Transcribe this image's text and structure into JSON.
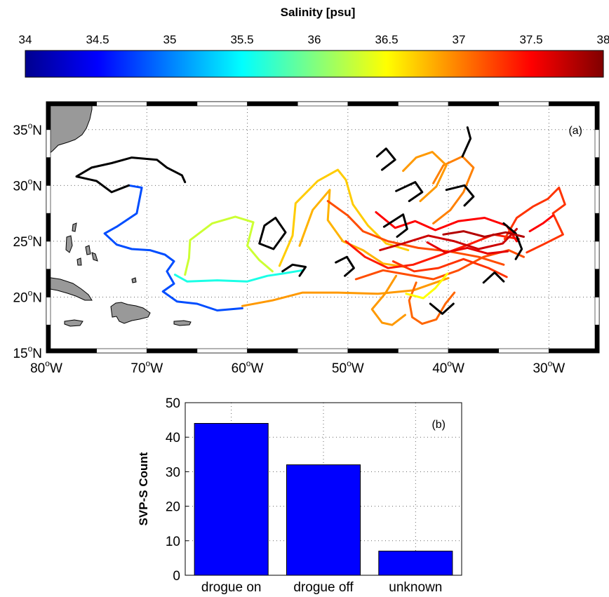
{
  "colorbar": {
    "title": "Salinity [psu]",
    "min": 34,
    "max": 38,
    "ticks": [
      "34",
      "34.5",
      "35",
      "35.5",
      "36",
      "36.5",
      "37",
      "37.5",
      "38"
    ],
    "colors": [
      "#00008f",
      "#0000ff",
      "#0080ff",
      "#00ffff",
      "#80ff80",
      "#ffff00",
      "#ff8000",
      "#ff0000",
      "#800000"
    ]
  },
  "chart_data": [
    {
      "type": "line",
      "panel_label": "(a)",
      "title": "",
      "x_ticks": [
        {
          "value": -80,
          "deg": "80",
          "hemi": "W"
        },
        {
          "value": -70,
          "deg": "70",
          "hemi": "W"
        },
        {
          "value": -60,
          "deg": "60",
          "hemi": "W"
        },
        {
          "value": -50,
          "deg": "50",
          "hemi": "W"
        },
        {
          "value": -40,
          "deg": "40",
          "hemi": "W"
        },
        {
          "value": -30,
          "deg": "30",
          "hemi": "W"
        }
      ],
      "y_ticks": [
        {
          "value": 15,
          "deg": "15",
          "hemi": "N"
        },
        {
          "value": 20,
          "deg": "20",
          "hemi": "N"
        },
        {
          "value": 25,
          "deg": "25",
          "hemi": "N"
        },
        {
          "value": 30,
          "deg": "30",
          "hemi": "N"
        },
        {
          "value": 35,
          "deg": "35",
          "hemi": "N"
        }
      ],
      "xlim": [
        -80,
        -25
      ],
      "ylim": [
        15,
        37.5
      ],
      "grid": true,
      "colored_by": "Salinity [psu]",
      "land_color": "#999999",
      "series": [
        {
          "salinity": 34.8,
          "points": [
            [
              -60.5,
              19.0
            ],
            [
              -63,
              18.8
            ],
            [
              -65,
              19.4
            ],
            [
              -67,
              19.6
            ],
            [
              -68.4,
              20.5
            ],
            [
              -67.3,
              21.2
            ],
            [
              -68,
              22.3
            ],
            [
              -67.3,
              23.2
            ],
            [
              -68.2,
              23.8
            ],
            [
              -69.7,
              24.2
            ],
            [
              -71.5,
              24.3
            ],
            [
              -73,
              24.7
            ],
            [
              -74.2,
              25.7
            ],
            [
              -73,
              26.3
            ],
            [
              -71,
              27.5
            ],
            [
              -70.5,
              29.8
            ],
            [
              -71.8,
              30.0
            ]
          ]
        },
        {
          "salinity": null,
          "points": [
            [
              -71.8,
              30.0
            ],
            [
              -73.5,
              29.4
            ],
            [
              -75,
              30.4
            ],
            [
              -77,
              30.8
            ],
            [
              -75.5,
              31.6
            ],
            [
              -73.5,
              32.0
            ],
            [
              -71.5,
              32.5
            ],
            [
              -69,
              32.3
            ],
            [
              -68,
              31.6
            ],
            [
              -66.5,
              30.9
            ],
            [
              -66.2,
              30.3
            ]
          ]
        },
        {
          "salinity": 35.6,
          "points": [
            [
              -67.2,
              22.0
            ],
            [
              -66,
              21.4
            ],
            [
              -63,
              21.5
            ],
            [
              -60,
              21.4
            ],
            [
              -58,
              21.9
            ],
            [
              -56.5,
              22.1
            ],
            [
              -54.5,
              22.4
            ]
          ]
        },
        {
          "salinity": 36.3,
          "points": [
            [
              -66.2,
              22.0
            ],
            [
              -65.8,
              23.5
            ],
            [
              -65.7,
              25.1
            ],
            [
              -63.5,
              26.6
            ],
            [
              -61.2,
              27.2
            ],
            [
              -59.4,
              26.7
            ],
            [
              -60,
              24.6
            ],
            [
              -58.8,
              23.3
            ],
            [
              -57.5,
              22.3
            ]
          ]
        },
        {
          "salinity": 36.9,
          "points": [
            [
              -60.5,
              19.2
            ],
            [
              -57.5,
              19.7
            ],
            [
              -54.5,
              20.4
            ],
            [
              -51,
              20.4
            ],
            [
              -47,
              20.3
            ],
            [
              -43.5,
              20.6
            ],
            [
              -40,
              21.7
            ]
          ]
        },
        {
          "salinity": 36.7,
          "points": [
            [
              -56.8,
              22.8
            ],
            [
              -55.5,
              25.5
            ],
            [
              -55.2,
              28.4
            ],
            [
              -53,
              30.4
            ],
            [
              -51,
              31.4
            ],
            [
              -50.2,
              30.5
            ],
            [
              -49.5,
              28.3
            ],
            [
              -48,
              26.4
            ],
            [
              -46.2,
              24.8
            ],
            [
              -44,
              24.2
            ]
          ]
        },
        {
          "salinity": 36.8,
          "points": [
            [
              -54.8,
              24.6
            ],
            [
              -53.5,
              27.8
            ],
            [
              -51.8,
              29.6
            ],
            [
              -52,
              26.9
            ],
            [
              -50.5,
              25.0
            ],
            [
              -48.5,
              24.2
            ],
            [
              -46.5,
              23.0
            ],
            [
              -44.3,
              22.7
            ]
          ]
        },
        {
          "salinity": null,
          "points": [
            [
              -58.8,
              24.8
            ],
            [
              -58.3,
              26.4
            ],
            [
              -57.2,
              27.1
            ],
            [
              -56.2,
              25.8
            ],
            [
              -57.4,
              24.3
            ],
            [
              -58.8,
              24.8
            ]
          ]
        },
        {
          "salinity": null,
          "points": [
            [
              -56.5,
              22.3
            ],
            [
              -55.5,
              22.9
            ],
            [
              -54.2,
              22.7
            ],
            [
              -54.8,
              21.9
            ]
          ]
        },
        {
          "salinity": 37.2,
          "points": [
            [
              -52,
              28.6
            ],
            [
              -50,
              27.3
            ],
            [
              -48.5,
              25.9
            ],
            [
              -46,
              25.0
            ],
            [
              -43,
              24.4
            ],
            [
              -40,
              24.1
            ],
            [
              -37,
              23.6
            ],
            [
              -34.5,
              22.9
            ]
          ]
        },
        {
          "salinity": 37.4,
          "points": [
            [
              -50.2,
              25.0
            ],
            [
              -48.3,
              23.6
            ],
            [
              -46,
              22.6
            ],
            [
              -43.5,
              22.9
            ],
            [
              -41,
              23.7
            ],
            [
              -38,
              24.7
            ],
            [
              -35.5,
              25.6
            ],
            [
              -33,
              25.2
            ]
          ]
        },
        {
          "salinity": 37.2,
          "points": [
            [
              -49.2,
              21.6
            ],
            [
              -46.5,
              22.4
            ],
            [
              -44,
              22.0
            ],
            [
              -41.5,
              21.6
            ],
            [
              -39,
              22.4
            ],
            [
              -36.5,
              23.6
            ],
            [
              -34,
              24.2
            ],
            [
              -32.5,
              23.6
            ]
          ]
        },
        {
          "salinity": 37.5,
          "points": [
            [
              -47.2,
              27.6
            ],
            [
              -45.3,
              26.2
            ],
            [
              -43.3,
              26.8
            ],
            [
              -41.3,
              26.0
            ],
            [
              -39,
              26.8
            ],
            [
              -36.4,
              27.1
            ],
            [
              -34.2,
              26.4
            ],
            [
              -33.2,
              25.0
            ]
          ]
        },
        {
          "salinity": 37.7,
          "points": [
            [
              -46.8,
              24.2
            ],
            [
              -44.5,
              24.8
            ],
            [
              -42,
              25.5
            ],
            [
              -39.4,
              25.0
            ],
            [
              -37,
              24.3
            ],
            [
              -34.6,
              24.8
            ],
            [
              -33.2,
              26.1
            ]
          ]
        },
        {
          "salinity": 37.3,
          "points": [
            [
              -45.5,
              23.2
            ],
            [
              -43.4,
              22.3
            ],
            [
              -41,
              22.6
            ],
            [
              -38.5,
              23.4
            ],
            [
              -36,
              22.6
            ],
            [
              -34.2,
              21.8
            ]
          ]
        },
        {
          "salinity": 37.0,
          "points": [
            [
              -41.5,
              30.2
            ],
            [
              -40.5,
              31.8
            ],
            [
              -38.6,
              32.6
            ],
            [
              -37.5,
              31.6
            ],
            [
              -38.5,
              29.4
            ],
            [
              -39.8,
              27.8
            ],
            [
              -41.5,
              26.6
            ]
          ]
        },
        {
          "salinity": null,
          "points": [
            [
              -38.6,
              32.6
            ],
            [
              -37.8,
              34.2
            ],
            [
              -38.1,
              35.2
            ]
          ]
        },
        {
          "salinity": 36.9,
          "points": [
            [
              -44.5,
              31.3
            ],
            [
              -43.2,
              32.5
            ],
            [
              -41.6,
              33.0
            ],
            [
              -40.2,
              31.8
            ],
            [
              -41.2,
              29.9
            ],
            [
              -42.8,
              28.6
            ]
          ]
        },
        {
          "salinity": 37.3,
          "points": [
            [
              -34.4,
              25.2
            ],
            [
              -33.2,
              27.1
            ],
            [
              -31.6,
              28.1
            ],
            [
              -30.1,
              28.8
            ],
            [
              -29,
              29.8
            ],
            [
              -28.4,
              28.3
            ],
            [
              -29.6,
              27.5
            ],
            [
              -28.6,
              25.6
            ],
            [
              -30.6,
              24.7
            ],
            [
              -32.2,
              24.0
            ]
          ]
        },
        {
          "salinity": 37.5,
          "points": [
            [
              -31.9,
              25.9
            ],
            [
              -30.6,
              26.6
            ],
            [
              -29.6,
              27.3
            ]
          ]
        },
        {
          "salinity": 36.9,
          "points": [
            [
              -45.2,
              21.9
            ],
            [
              -46.3,
              20.3
            ],
            [
              -47.6,
              18.9
            ],
            [
              -46.6,
              17.7
            ],
            [
              -45.6,
              17.5
            ],
            [
              -44.3,
              18.4
            ]
          ]
        },
        {
          "salinity": 37.1,
          "points": [
            [
              -43.2,
              21.3
            ],
            [
              -43.9,
              19.7
            ],
            [
              -43.6,
              18.2
            ],
            [
              -42.6,
              17.6
            ],
            [
              -41.2,
              18.0
            ],
            [
              -40.3,
              19.4
            ],
            [
              -39.4,
              20.4
            ]
          ]
        },
        {
          "salinity": 36.5,
          "points": [
            [
              -44.2,
              20.3
            ],
            [
              -42.5,
              19.9
            ],
            [
              -41.3,
              20.8
            ],
            [
              -40.1,
              22.1
            ]
          ]
        },
        {
          "salinity": null,
          "points": [
            [
              -47.1,
              32.6
            ],
            [
              -46.2,
              33.3
            ],
            [
              -45.3,
              32.3
            ],
            [
              -46.6,
              31.4
            ]
          ]
        },
        {
          "salinity": null,
          "points": [
            [
              -45.2,
              29.5
            ],
            [
              -43.3,
              30.3
            ],
            [
              -42.6,
              29.4
            ],
            [
              -43.9,
              28.6
            ]
          ]
        },
        {
          "salinity": null,
          "points": [
            [
              -40.2,
              29.6
            ],
            [
              -38.4,
              30.0
            ],
            [
              -37.5,
              29.0
            ],
            [
              -38.4,
              28.2
            ]
          ]
        },
        {
          "salinity": null,
          "points": [
            [
              -51.2,
              23.1
            ],
            [
              -50.1,
              23.6
            ],
            [
              -49.4,
              22.6
            ],
            [
              -50.3,
              21.9
            ]
          ]
        },
        {
          "salinity": null,
          "points": [
            [
              -46.4,
              26.3
            ],
            [
              -44.5,
              27.4
            ],
            [
              -44.1,
              26.1
            ],
            [
              -45.1,
              25.4
            ]
          ]
        },
        {
          "salinity": null,
          "points": [
            [
              -34.5,
              26.6
            ],
            [
              -33.3,
              25.7
            ],
            [
              -32.7,
              24.3
            ],
            [
              -33.3,
              23.4
            ]
          ]
        },
        {
          "salinity": null,
          "points": [
            [
              -36.5,
              21.3
            ],
            [
              -35.4,
              22.2
            ],
            [
              -34.5,
              21.4
            ]
          ]
        },
        {
          "salinity": null,
          "points": [
            [
              -41.8,
              19.4
            ],
            [
              -40.6,
              18.5
            ],
            [
              -39.5,
              19.4
            ]
          ]
        },
        {
          "salinity": 37.8,
          "points": [
            [
              -40.5,
              25.6
            ],
            [
              -38.5,
              25.9
            ],
            [
              -36.4,
              25.4
            ],
            [
              -34.3,
              25.8
            ],
            [
              -32.5,
              25.4
            ]
          ]
        },
        {
          "salinity": 37.6,
          "points": [
            [
              -42.1,
              24.9
            ],
            [
              -40.3,
              24.0
            ],
            [
              -38.1,
              24.4
            ],
            [
              -36.1,
              23.9
            ],
            [
              -34.1,
              24.1
            ]
          ]
        }
      ]
    },
    {
      "type": "bar",
      "panel_label": "(b)",
      "title": "",
      "categories": [
        "drogue on",
        "drogue off",
        "unknown"
      ],
      "values": [
        44,
        32,
        7
      ],
      "xlabel": "",
      "ylabel": "SVP-S Count",
      "ylim": [
        0,
        50
      ],
      "y_ticks": [
        "0",
        "10",
        "20",
        "30",
        "40",
        "50"
      ],
      "grid": true,
      "bar_color": "#0000ff"
    }
  ]
}
